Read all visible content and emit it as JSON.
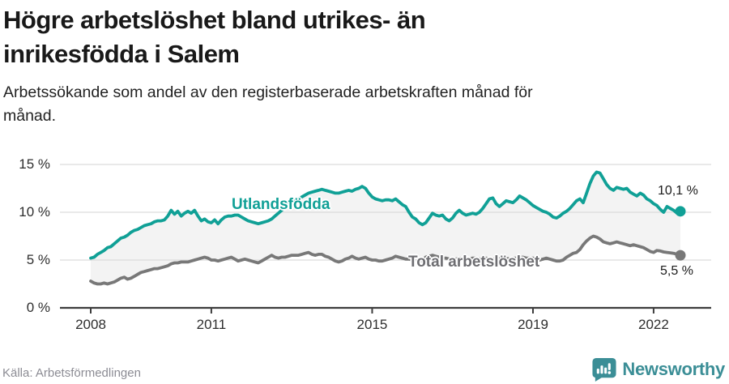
{
  "header": {
    "title_lines": [
      "Högre arbetslöshet bland utrikes- än",
      "inrikesfödda i Salem"
    ],
    "subtitle_lines": [
      "Arbetssökande som andel av den registerbaserade arbetskraften månad för",
      "månad."
    ]
  },
  "chart_data": {
    "type": "line",
    "title": "Högre arbetslöshet bland utrikes- än inrikesfödda i Salem",
    "subtitle": "Arbetssökande som andel av den registerbaserade arbetskraften månad för månad.",
    "x_unit": "month",
    "x_start": "2008-01",
    "x_end": "2022-09",
    "x_tick_years": [
      2008,
      2011,
      2015,
      2019,
      2022
    ],
    "x_tick_labels": [
      "2008",
      "2011",
      "2015",
      "2019",
      "2022"
    ],
    "y_ticks": [
      {
        "value": 0,
        "label": "0 %"
      },
      {
        "value": 5,
        "label": "5 %"
      },
      {
        "value": 10,
        "label": "10 %"
      },
      {
        "value": 15,
        "label": "15 %"
      }
    ],
    "ylim": [
      0,
      15.5
    ],
    "grid": "horizontal",
    "fill_between_color": "#f3f3f3",
    "series": [
      {
        "name": "Utlandsfödda",
        "color": "#10a096",
        "end_label": "10,1 %",
        "end_value": 10.1,
        "values": [
          5.2,
          5.3,
          5.6,
          5.8,
          6.0,
          6.3,
          6.4,
          6.7,
          7.0,
          7.3,
          7.4,
          7.6,
          7.9,
          8.1,
          8.2,
          8.4,
          8.6,
          8.7,
          8.8,
          9.0,
          9.1,
          9.1,
          9.2,
          9.6,
          10.2,
          9.8,
          10.1,
          9.6,
          9.9,
          10.1,
          9.9,
          10.2,
          9.6,
          9.1,
          9.3,
          9.0,
          8.9,
          9.2,
          8.8,
          9.2,
          9.5,
          9.6,
          9.6,
          9.7,
          9.7,
          9.5,
          9.3,
          9.1,
          9.0,
          8.9,
          8.8,
          8.9,
          9.0,
          9.1,
          9.3,
          9.6,
          9.9,
          10.2,
          10.5,
          10.8,
          11.0,
          11.2,
          11.4,
          11.6,
          11.8,
          12.0,
          12.1,
          12.2,
          12.3,
          12.4,
          12.3,
          12.2,
          12.1,
          12.0,
          12.0,
          12.1,
          12.2,
          12.3,
          12.2,
          12.4,
          12.5,
          12.7,
          12.5,
          12.0,
          11.6,
          11.4,
          11.3,
          11.2,
          11.3,
          11.3,
          11.2,
          11.4,
          11.1,
          10.8,
          10.6,
          10.0,
          9.5,
          9.3,
          8.9,
          8.7,
          8.9,
          9.4,
          9.9,
          9.7,
          9.6,
          9.7,
          9.3,
          9.1,
          9.4,
          9.9,
          10.2,
          9.9,
          9.7,
          9.8,
          9.9,
          9.8,
          10.0,
          10.4,
          10.9,
          11.4,
          11.5,
          10.9,
          10.6,
          10.9,
          11.2,
          11.1,
          11.0,
          11.3,
          11.7,
          11.5,
          11.3,
          11.0,
          10.7,
          10.5,
          10.3,
          10.1,
          10.0,
          9.8,
          9.5,
          9.4,
          9.6,
          9.9,
          10.1,
          10.4,
          10.8,
          11.2,
          11.4,
          11.0,
          12.0,
          13.0,
          13.8,
          14.2,
          14.1,
          13.5,
          12.9,
          12.5,
          12.3,
          12.6,
          12.5,
          12.4,
          12.5,
          12.1,
          11.9,
          11.7,
          12.0,
          11.8,
          11.4,
          11.2,
          10.9,
          10.7,
          10.3,
          10.0,
          10.6,
          10.4,
          10.2,
          9.9,
          10.1
        ]
      },
      {
        "name": "Total arbetslöshet",
        "color": "#787878",
        "end_label": "5,5 %",
        "end_value": 5.5,
        "values": [
          2.8,
          2.6,
          2.5,
          2.5,
          2.6,
          2.5,
          2.6,
          2.7,
          2.9,
          3.1,
          3.2,
          3.0,
          3.1,
          3.3,
          3.5,
          3.7,
          3.8,
          3.9,
          4.0,
          4.1,
          4.1,
          4.2,
          4.3,
          4.4,
          4.6,
          4.7,
          4.7,
          4.8,
          4.8,
          4.8,
          4.9,
          5.0,
          5.1,
          5.2,
          5.3,
          5.2,
          5.0,
          5.0,
          4.9,
          5.0,
          5.1,
          5.2,
          5.3,
          5.1,
          4.9,
          5.0,
          5.1,
          5.0,
          4.9,
          4.8,
          4.7,
          4.9,
          5.1,
          5.3,
          5.5,
          5.3,
          5.2,
          5.3,
          5.3,
          5.4,
          5.5,
          5.5,
          5.5,
          5.6,
          5.7,
          5.8,
          5.6,
          5.5,
          5.6,
          5.6,
          5.4,
          5.3,
          5.1,
          4.9,
          4.8,
          4.9,
          5.1,
          5.2,
          5.4,
          5.2,
          5.1,
          5.2,
          5.3,
          5.1,
          5.0,
          5.0,
          4.9,
          4.9,
          5.0,
          5.1,
          5.2,
          5.4,
          5.3,
          5.2,
          5.1,
          5.1,
          5.0,
          4.9,
          4.8,
          5.0,
          5.3,
          5.4,
          5.5,
          5.4,
          5.3,
          5.2,
          5.2,
          5.1,
          5.0,
          5.1,
          5.2,
          5.1,
          5.0,
          5.1,
          5.2,
          5.2,
          5.1,
          5.2,
          5.2,
          5.1,
          5.1,
          5.1,
          5.2,
          5.3,
          5.2,
          5.1,
          5.2,
          5.2,
          5.3,
          5.3,
          5.2,
          5.2,
          5.2,
          5.1,
          5.0,
          5.1,
          5.2,
          5.1,
          5.0,
          4.9,
          4.9,
          5.0,
          5.3,
          5.5,
          5.7,
          5.8,
          6.1,
          6.6,
          7.0,
          7.3,
          7.5,
          7.4,
          7.2,
          6.9,
          6.8,
          6.7,
          6.8,
          6.9,
          6.8,
          6.7,
          6.6,
          6.5,
          6.6,
          6.5,
          6.4,
          6.3,
          6.1,
          5.9,
          5.8,
          6.0,
          5.95,
          5.85,
          5.8,
          5.75,
          5.7,
          5.6,
          5.5
        ]
      }
    ]
  },
  "footer": {
    "source": "Källa: Arbetsförmedlingen",
    "brand": "Newsworthy"
  }
}
